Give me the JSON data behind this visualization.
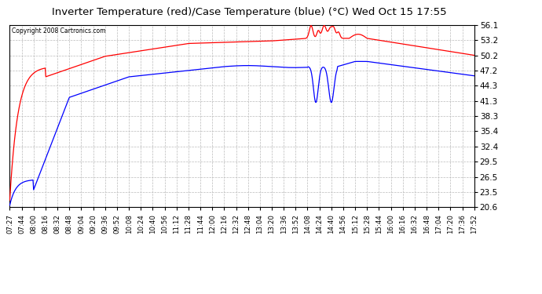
{
  "title": "Inverter Temperature (red)/Case Temperature (blue) (°C) Wed Oct 15 17:55",
  "copyright": "Copyright 2008 Cartronics.com",
  "bg_color": "#FFFFFF",
  "plot_bg_color": "#FFFFFF",
  "grid_color": "#BBBBBB",
  "yticks": [
    20.6,
    23.5,
    26.5,
    29.5,
    32.4,
    35.4,
    38.3,
    41.3,
    44.3,
    47.2,
    50.2,
    53.2,
    56.1
  ],
  "ymin": 20.6,
  "ymax": 56.1,
  "xtick_labels": [
    "07:27",
    "07:44",
    "08:00",
    "08:16",
    "08:32",
    "08:48",
    "09:04",
    "09:20",
    "09:36",
    "09:52",
    "10:08",
    "10:24",
    "10:40",
    "10:56",
    "11:12",
    "11:28",
    "11:44",
    "12:00",
    "12:16",
    "12:32",
    "12:48",
    "13:04",
    "13:20",
    "13:36",
    "13:52",
    "14:08",
    "14:24",
    "14:40",
    "14:56",
    "15:12",
    "15:28",
    "15:44",
    "16:00",
    "16:16",
    "16:32",
    "16:48",
    "17:04",
    "17:20",
    "17:36",
    "17:52"
  ],
  "red_line_color": "#FF0000",
  "blue_line_color": "#0000FF",
  "n_ticks": 40
}
